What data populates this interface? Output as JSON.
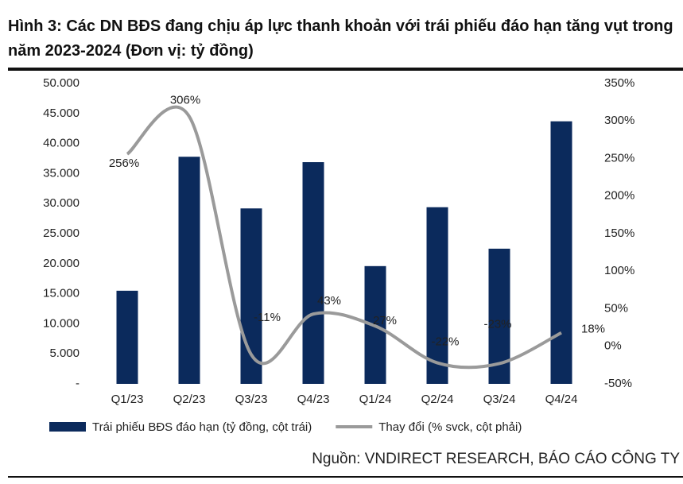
{
  "chart_data": {
    "type": "bar-line",
    "title": "Hình 3: Các DN BĐS đang chịu áp lực thanh khoản với trái phiếu đáo hạn tăng vụt trong năm 2023-2024 (Đơn vị: tỷ đồng)",
    "source": "Nguồn: VNDIRECT RESEARCH, BÁO CÁO CÔNG TY",
    "categories": [
      "Q1/23",
      "Q2/23",
      "Q3/23",
      "Q4/23",
      "Q1/24",
      "Q2/24",
      "Q3/24",
      "Q4/24"
    ],
    "series": [
      {
        "name": "Trái phiếu BĐS đáo hạn (tỷ đồng, cột trái)",
        "type": "bar",
        "color": "#0b2a5c",
        "values": [
          15500,
          37800,
          29200,
          36900,
          19600,
          29400,
          22500,
          43700
        ]
      },
      {
        "name": "Thay đổi (% svck, cột phải)",
        "type": "line",
        "axis": "y2",
        "color": "#9a9a9a",
        "values": [
          256,
          306,
          -11,
          43,
          27,
          -22,
          -23,
          18
        ],
        "value_labels": [
          "256%",
          "306%",
          "-11%",
          "43%",
          "27%",
          "-22%",
          "-23%",
          "18%"
        ]
      }
    ],
    "ylim": [
      0,
      50000
    ],
    "yticks": [
      {
        "value": 0,
        "label": "-"
      },
      {
        "value": 5000,
        "label": "5.000"
      },
      {
        "value": 10000,
        "label": "10.000"
      },
      {
        "value": 15000,
        "label": "15.000"
      },
      {
        "value": 20000,
        "label": "20.000"
      },
      {
        "value": 25000,
        "label": "25.000"
      },
      {
        "value": 30000,
        "label": "30.000"
      },
      {
        "value": 35000,
        "label": "35.000"
      },
      {
        "value": 40000,
        "label": "40.000"
      },
      {
        "value": 45000,
        "label": "45.000"
      },
      {
        "value": 50000,
        "label": "50.000"
      }
    ],
    "y2lim": [
      -50,
      350
    ],
    "y2ticks": [
      {
        "value": -50,
        "label": "-50%"
      },
      {
        "value": 0,
        "label": "0%"
      },
      {
        "value": 50,
        "label": "50%"
      },
      {
        "value": 100,
        "label": "100%"
      },
      {
        "value": 150,
        "label": "150%"
      },
      {
        "value": 200,
        "label": "200%"
      },
      {
        "value": 250,
        "label": "250%"
      },
      {
        "value": 300,
        "label": "300%"
      },
      {
        "value": 350,
        "label": "350%"
      }
    ],
    "legend": "bottom"
  }
}
